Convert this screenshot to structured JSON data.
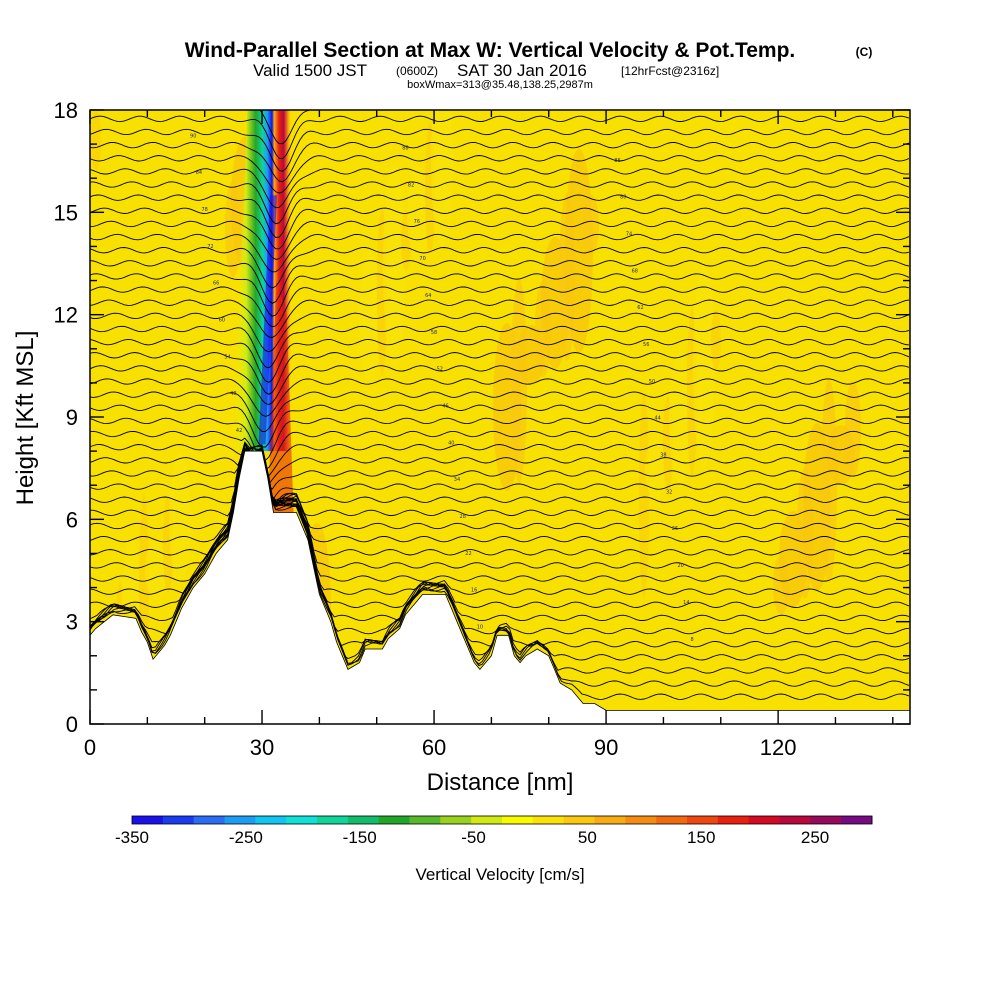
{
  "header": {
    "title": "Wind-Parallel Section at Max W: Vertical Velocity & Pot.Temp.",
    "copyright": "(C)",
    "subtitle_main": "Valid 1500 JST",
    "subtitle_utc": "(0600Z)",
    "subtitle_date": "SAT 30 Jan 2016",
    "subtitle_fcst": "[12hrFcst@2316z]",
    "boxline": "boxWmax=313@35.48,138.25,2987m"
  },
  "chart_data": {
    "type": "heatmap",
    "title": "Wind-Parallel Section at Max W: Vertical Velocity & Pot.Temp.",
    "xlabel": "Distance [nm]",
    "ylabel": "Height [Kft MSL]",
    "xlim": [
      0,
      143
    ],
    "ylim": [
      0,
      18
    ],
    "x_ticks": [
      0,
      30,
      60,
      90,
      120
    ],
    "y_ticks": [
      0,
      3,
      6,
      9,
      12,
      15,
      18
    ],
    "terrain": [
      [
        0,
        2.6
      ],
      [
        1,
        2.8
      ],
      [
        4,
        3.2
      ],
      [
        8,
        3.1
      ],
      [
        9,
        2.7
      ],
      [
        10,
        2.4
      ],
      [
        11,
        1.9
      ],
      [
        13,
        2.3
      ],
      [
        14,
        2.6
      ],
      [
        15,
        3.0
      ],
      [
        16,
        3.4
      ],
      [
        17,
        3.7
      ],
      [
        18,
        4.0
      ],
      [
        20,
        4.4
      ],
      [
        21,
        4.7
      ],
      [
        22,
        5.0
      ],
      [
        24,
        5.4
      ],
      [
        25,
        6.2
      ],
      [
        26,
        7.2
      ],
      [
        27,
        8.0
      ],
      [
        30,
        8.0
      ],
      [
        31,
        7.2
      ],
      [
        32,
        6.2
      ],
      [
        36,
        6.2
      ],
      [
        37,
        5.8
      ],
      [
        38,
        5.4
      ],
      [
        39,
        4.6
      ],
      [
        40,
        3.8
      ],
      [
        41,
        3.4
      ],
      [
        42,
        3.0
      ],
      [
        43,
        2.4
      ],
      [
        44,
        2.0
      ],
      [
        45,
        1.6
      ],
      [
        47,
        1.8
      ],
      [
        48,
        2.2
      ],
      [
        51,
        2.2
      ],
      [
        52,
        2.5
      ],
      [
        54,
        2.8
      ],
      [
        55,
        3.2
      ],
      [
        57,
        3.6
      ],
      [
        58,
        3.8
      ],
      [
        62,
        3.8
      ],
      [
        63,
        3.4
      ],
      [
        64,
        3.0
      ],
      [
        65,
        2.6
      ],
      [
        66,
        2.2
      ],
      [
        67,
        1.8
      ],
      [
        68,
        1.6
      ],
      [
        70,
        2.0
      ],
      [
        71,
        2.6
      ],
      [
        73,
        2.6
      ],
      [
        74,
        2.0
      ],
      [
        75,
        1.8
      ],
      [
        76,
        2.0
      ],
      [
        78,
        2.2
      ],
      [
        80,
        2.0
      ],
      [
        81,
        1.6
      ],
      [
        82,
        1.2
      ],
      [
        84,
        1.0
      ],
      [
        85,
        0.8
      ],
      [
        86,
        0.6
      ],
      [
        88,
        0.6
      ],
      [
        90,
        0.4
      ],
      [
        92,
        0.4
      ],
      [
        95,
        0.4
      ],
      [
        143,
        0.4
      ]
    ],
    "contour_label_values": [
      "90",
      "88",
      "86",
      "84",
      "82",
      "80",
      "78",
      "76",
      "74",
      "72",
      "70",
      "68",
      "66",
      "64",
      "62",
      "60",
      "58",
      "56",
      "54",
      "52",
      "50",
      "48",
      "46",
      "44",
      "42",
      "40",
      "38",
      "36",
      "34",
      "32",
      "30",
      "28",
      "26",
      "24",
      "22",
      "20",
      "18",
      "16",
      "14",
      "12",
      "10",
      "8",
      "6"
    ],
    "colorbar": {
      "label": "Vertical Velocity [cm/s]",
      "ticks": [
        -350,
        -250,
        -150,
        -50,
        50,
        150,
        250
      ],
      "tick_labels": [
        "-350",
        "-250",
        "-150",
        "-50",
        "50",
        "150",
        "250"
      ],
      "range": [
        -350,
        300
      ],
      "colors": [
        "#1a10e8",
        "#1a3cf0",
        "#2a6cf4",
        "#1e9cf4",
        "#12c4f0",
        "#10e0d8",
        "#10d49a",
        "#14bc6a",
        "#22a628",
        "#58b82c",
        "#98d21e",
        "#d2ea14",
        "#fafa00",
        "#fae208",
        "#fac810",
        "#f8ac14",
        "#f48c14",
        "#f06a10",
        "#ec4810",
        "#e8200e",
        "#d40a24",
        "#b8083e",
        "#960a5a",
        "#760a82"
      ]
    }
  }
}
